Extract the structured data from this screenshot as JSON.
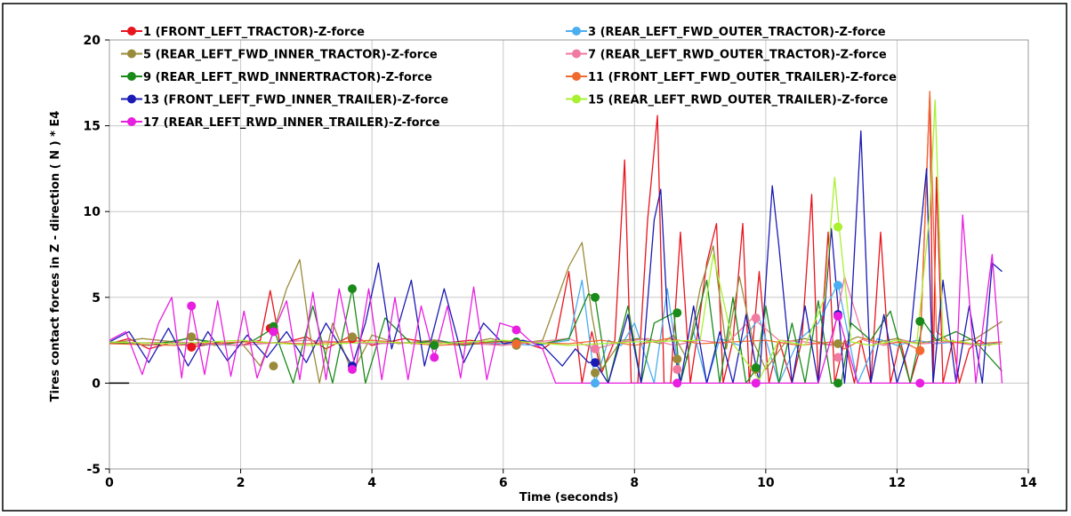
{
  "chart_data": {
    "type": "line",
    "title": "",
    "xlabel": "Time (seconds)",
    "ylabel": "Tires contact forces in Z - direction ( N ) * E4",
    "xlim": [
      0,
      14
    ],
    "ylim": [
      -5,
      20
    ],
    "x_ticks": [
      "0",
      "2",
      "4",
      "6",
      "8",
      "10",
      "12",
      "14"
    ],
    "y_ticks": [
      "-5",
      "0",
      "5",
      "10",
      "15",
      "20"
    ],
    "grid": true,
    "legend_placement": "top-inside",
    "series": [
      {
        "name": "1 (FRONT_LEFT_TRACTOR)-Z-force",
        "color": "#e8141e",
        "x": [
          0,
          0.3,
          0.6,
          1.0,
          1.25,
          1.6,
          2.0,
          2.3,
          2.45,
          2.6,
          3.0,
          3.3,
          3.7,
          4.0,
          4.5,
          5.0,
          5.5,
          6.0,
          6.2,
          6.6,
          6.8,
          7.0,
          7.2,
          7.35,
          7.5,
          7.7,
          7.85,
          7.95,
          8.05,
          8.2,
          8.35,
          8.45,
          8.55,
          8.7,
          8.85,
          8.95,
          9.1,
          9.25,
          9.35,
          9.5,
          9.65,
          9.75,
          9.9,
          10.05,
          10.2,
          10.4,
          10.55,
          10.7,
          10.8,
          10.95,
          11.05,
          11.2,
          11.35,
          11.45,
          11.6,
          11.75,
          11.9,
          12.05,
          12.2,
          12.35,
          12.5,
          12.55,
          12.6,
          12.7,
          12.85,
          12.95,
          13.1,
          13.25,
          13.4,
          13.55
        ],
        "y": [
          2.3,
          2.6,
          2.0,
          2.4,
          2.1,
          2.3,
          2.2,
          2.5,
          5.4,
          2.3,
          2.7,
          2.0,
          2.8,
          2.2,
          2.6,
          2.3,
          2.5,
          2.2,
          2.5,
          2.0,
          2.5,
          6.5,
          0,
          3.0,
          0.6,
          2.5,
          13.0,
          0,
          0,
          9.5,
          15.6,
          0,
          0,
          8.8,
          0,
          2.6,
          7.0,
          9.3,
          0,
          2.5,
          9.3,
          0,
          6.5,
          0,
          2.5,
          0,
          2.5,
          11.0,
          0,
          8.8,
          0,
          2.5,
          0,
          2.5,
          0,
          8.8,
          0,
          2.5,
          0,
          2.0,
          17.0,
          0,
          12.0,
          0,
          2.5,
          0,
          2.0,
          2.5,
          2.2,
          2.4
        ]
      },
      {
        "name": "3 (REAR_LEFT_FWD_OUTER_TRACTOR)-Z-force",
        "color": "#4aaef0",
        "x": [
          0,
          1.0,
          2.0,
          3.0,
          4.0,
          5.0,
          6.0,
          6.5,
          7.0,
          7.2,
          7.4,
          7.6,
          7.8,
          8.0,
          8.3,
          8.5,
          8.7,
          8.9,
          9.1,
          9.3,
          9.6,
          9.9,
          10.2,
          10.5,
          10.8,
          11.1,
          11.4,
          11.7,
          12.0,
          12.3,
          12.6,
          12.9,
          13.2,
          13.6
        ],
        "y": [
          2.4,
          2.3,
          2.2,
          2.5,
          2.3,
          2.4,
          2.3,
          2.2,
          2.5,
          6.0,
          0,
          2.5,
          2.2,
          3.5,
          0,
          5.5,
          0,
          3.0,
          0,
          2.6,
          2.2,
          3.8,
          0,
          2.5,
          3.5,
          5.8,
          0,
          2.6,
          2.2,
          2.5,
          2.3,
          2.4,
          2.2,
          2.4
        ]
      },
      {
        "name": "5 (REAR_LEFT_FWD_INNER_TRACTOR)-Z-force",
        "color": "#9a8b3a",
        "x": [
          0,
          0.5,
          1.0,
          1.25,
          1.6,
          2.0,
          2.3,
          2.5,
          2.7,
          2.9,
          3.05,
          3.2,
          3.4,
          3.7,
          4.0,
          4.4,
          4.9,
          5.3,
          5.8,
          6.2,
          6.6,
          7.0,
          7.2,
          7.35,
          7.5,
          7.8,
          8.1,
          8.4,
          8.6,
          8.8,
          9.0,
          9.2,
          9.4,
          9.6,
          9.8,
          10.0,
          10.3,
          10.6,
          10.9,
          11.1,
          11.4,
          11.7,
          12.0,
          12.3,
          12.6,
          12.9,
          13.2,
          13.6
        ],
        "y": [
          2.3,
          2.6,
          2.4,
          2.7,
          2.2,
          2.4,
          1.0,
          3.0,
          5.5,
          7.2,
          3.0,
          0,
          3.5,
          0.6,
          2.8,
          2.3,
          2.5,
          2.2,
          2.6,
          2.3,
          2.5,
          6.8,
          8.2,
          4.0,
          0.8,
          2.5,
          2.6,
          2.3,
          2.8,
          1.4,
          5.5,
          8.0,
          2.0,
          6.2,
          2.5,
          0.8,
          2.4,
          2.6,
          2.3,
          2.2,
          2.7,
          2.4,
          2.6,
          2.3,
          2.5,
          2.4,
          2.6,
          3.6
        ]
      },
      {
        "name": "7 (REAR_LEFT_RWD_OUTER_TRACTOR)-Z-force",
        "color": "#f07aa0",
        "x": [
          0,
          1.0,
          2.0,
          3.0,
          4.0,
          5.0,
          6.0,
          7.0,
          7.4,
          7.8,
          8.2,
          8.6,
          9.0,
          9.4,
          9.8,
          10.2,
          10.6,
          11.0,
          11.2,
          11.5,
          11.8,
          12.1,
          12.4,
          12.8,
          13.2,
          13.6
        ],
        "y": [
          2.3,
          2.4,
          2.2,
          2.5,
          2.3,
          2.4,
          2.2,
          2.6,
          2.0,
          2.4,
          2.6,
          2.2,
          2.5,
          2.3,
          3.8,
          2.5,
          2.4,
          2.2,
          6.2,
          2.5,
          2.2,
          2.5,
          2.3,
          2.4,
          2.2,
          2.3
        ]
      },
      {
        "name": "9 (REAR_LEFT_RWD_INNERTRACTOR)-Z-force",
        "color": "#1a8a1a",
        "x": [
          0,
          0.6,
          1.2,
          1.8,
          2.2,
          2.5,
          2.8,
          3.1,
          3.4,
          3.7,
          3.9,
          4.2,
          4.6,
          5.0,
          5.4,
          5.8,
          6.2,
          6.6,
          7.0,
          7.3,
          7.4,
          7.6,
          7.9,
          8.1,
          8.3,
          8.6,
          8.7,
          8.9,
          9.1,
          9.3,
          9.5,
          9.7,
          9.85,
          10.0,
          10.2,
          10.4,
          10.6,
          10.8,
          11.0,
          11.15,
          11.3,
          11.6,
          11.9,
          12.2,
          12.4,
          12.6,
          12.9,
          13.2,
          13.6
        ],
        "y": [
          2.4,
          2.2,
          2.6,
          2.3,
          2.5,
          3.2,
          0,
          4.5,
          0,
          5.5,
          0,
          3.8,
          2.3,
          2.5,
          2.2,
          2.4,
          2.5,
          2.3,
          2.6,
          5.2,
          5.0,
          0,
          4.5,
          0,
          3.5,
          4.1,
          0,
          3.0,
          6.0,
          0,
          5.0,
          0,
          0.8,
          4.5,
          0,
          3.5,
          0,
          4.8,
          0,
          0,
          3.5,
          2.5,
          4.2,
          0,
          3.6,
          2.5,
          3.0,
          2.4,
          0.7
        ]
      },
      {
        "name": "11 (FRONT_LEFT_FWD_OUTER_TRAILER)-Z-force",
        "color": "#f06a30",
        "x": [
          0,
          1.0,
          2.0,
          3.0,
          4.0,
          5.0,
          6.0,
          7.0,
          7.5,
          8.0,
          8.5,
          9.0,
          9.5,
          10.0,
          10.5,
          11.0,
          11.2,
          11.5,
          11.8,
          12.1,
          12.35,
          12.5,
          12.6,
          12.8,
          13.2,
          13.6
        ],
        "y": [
          2.3,
          2.2,
          2.4,
          2.3,
          2.5,
          2.2,
          2.4,
          2.3,
          2.5,
          2.2,
          2.6,
          2.3,
          2.4,
          2.5,
          2.2,
          2.4,
          2.0,
          2.6,
          2.3,
          2.4,
          1.9,
          17.0,
          3.0,
          2.4,
          2.3,
          2.4
        ]
      },
      {
        "name": "13 (FRONT_LEFT_FWD_INNER_TRAILER)-Z-force",
        "color": "#1a1ab4",
        "x": [
          0,
          0.3,
          0.6,
          0.9,
          1.2,
          1.5,
          1.8,
          2.1,
          2.4,
          2.7,
          3.0,
          3.3,
          3.7,
          3.9,
          4.1,
          4.3,
          4.6,
          4.8,
          5.1,
          5.4,
          5.7,
          6.0,
          6.3,
          6.6,
          6.9,
          7.1,
          7.3,
          7.4,
          7.6,
          7.9,
          8.1,
          8.3,
          8.4,
          8.5,
          8.7,
          8.9,
          9.1,
          9.3,
          9.5,
          9.7,
          9.9,
          10.1,
          10.2,
          10.4,
          10.6,
          10.8,
          11.0,
          11.2,
          11.3,
          11.45,
          11.6,
          11.8,
          12.0,
          12.2,
          12.45,
          12.55,
          12.7,
          12.9,
          13.1,
          13.3,
          13.45,
          13.6
        ],
        "y": [
          2.4,
          3.0,
          1.2,
          3.2,
          1.0,
          3.0,
          1.3,
          2.8,
          1.5,
          3.0,
          1.2,
          3.5,
          1.0,
          3.5,
          7.0,
          2.0,
          6.0,
          1.0,
          5.5,
          1.2,
          3.5,
          2.3,
          2.5,
          2.2,
          1.0,
          2.0,
          1.2,
          1.2,
          0,
          4.0,
          0,
          9.5,
          11.3,
          4.0,
          0,
          4.5,
          0,
          3.0,
          0,
          4.0,
          0,
          11.5,
          8.0,
          0,
          4.5,
          0,
          9.0,
          0,
          4.0,
          14.7,
          0,
          4.0,
          0,
          2.5,
          12.5,
          0,
          6.0,
          0,
          4.5,
          0,
          7.0,
          6.5
        ]
      },
      {
        "name": "15 (REAR_LEFT_RWD_OUTER_TRAILER)-Z-force",
        "color": "#a8f030",
        "x": [
          0,
          1.0,
          2.0,
          3.0,
          4.0,
          5.0,
          6.0,
          7.0,
          8.0,
          9.0,
          9.2,
          9.5,
          9.9,
          10.2,
          10.6,
          10.9,
          11.05,
          11.12,
          11.3,
          11.6,
          12.0,
          12.3,
          12.5,
          12.58,
          12.7,
          13.0,
          13.3,
          13.6
        ],
        "y": [
          2.4,
          2.3,
          2.5,
          2.2,
          2.4,
          2.3,
          2.5,
          2.2,
          2.4,
          2.5,
          7.5,
          2.3,
          0.2,
          2.5,
          2.2,
          5.0,
          12.0,
          9.0,
          2.4,
          2.2,
          2.5,
          2.3,
          10.0,
          16.5,
          2.5,
          2.4,
          2.2,
          2.3
        ]
      },
      {
        "name": "17 (REAR_LEFT_RWD_INNER_TRAILER)-Z-force",
        "color": "#e81ee0",
        "x": [
          0,
          0.25,
          0.5,
          0.75,
          0.95,
          1.1,
          1.25,
          1.45,
          1.65,
          1.85,
          2.05,
          2.25,
          2.5,
          2.7,
          2.9,
          3.1,
          3.3,
          3.5,
          3.75,
          3.95,
          4.15,
          4.35,
          4.55,
          4.75,
          4.95,
          5.15,
          5.35,
          5.55,
          5.75,
          5.95,
          6.2,
          6.4,
          6.6,
          6.8,
          7.0,
          7.2,
          7.4,
          7.6,
          7.8,
          8.0,
          8.2,
          8.4,
          8.7,
          9.0,
          9.3,
          9.6,
          9.9,
          10.2,
          10.5,
          10.8,
          11.1,
          11.4,
          11.7,
          12.0,
          12.4,
          12.7,
          12.9,
          13.0,
          13.2,
          13.45,
          13.6
        ],
        "y": [
          2.5,
          3.0,
          0.5,
          3.5,
          5.0,
          0.3,
          4.5,
          0.5,
          4.8,
          0.4,
          4.2,
          0.3,
          3.0,
          4.8,
          0.2,
          5.3,
          0.2,
          5.5,
          0.8,
          5.5,
          0.2,
          5.0,
          0.2,
          4.5,
          1.5,
          4.5,
          0.3,
          5.6,
          0.2,
          3.5,
          3.2,
          2.5,
          2.0,
          0,
          0,
          0,
          0,
          0,
          0,
          0,
          0,
          0,
          0,
          0,
          0,
          0,
          0,
          0,
          0,
          0,
          4.0,
          0,
          0,
          0,
          0,
          0,
          0,
          9.8,
          0,
          7.5,
          0
        ]
      }
    ],
    "markers": [
      {
        "series": 0,
        "x": 1.25,
        "y": 2.1
      },
      {
        "series": 0,
        "x": 2.45,
        "y": 3.2
      },
      {
        "series": 0,
        "x": 3.7,
        "y": 2.6
      },
      {
        "series": 0,
        "x": 12.35,
        "y": 1.9
      },
      {
        "series": 1,
        "x": 7.4,
        "y": 0
      },
      {
        "series": 1,
        "x": 9.85,
        "y": 0
      },
      {
        "series": 1,
        "x": 11.1,
        "y": 5.7
      },
      {
        "series": 2,
        "x": 1.25,
        "y": 2.7
      },
      {
        "series": 2,
        "x": 2.5,
        "y": 1.0
      },
      {
        "series": 2,
        "x": 3.7,
        "y": 2.7
      },
      {
        "series": 2,
        "x": 4.95,
        "y": 2.3
      },
      {
        "series": 2,
        "x": 6.2,
        "y": 2.2
      },
      {
        "series": 2,
        "x": 7.4,
        "y": 0.6
      },
      {
        "series": 2,
        "x": 8.65,
        "y": 1.4
      },
      {
        "series": 2,
        "x": 9.85,
        "y": 0.8
      },
      {
        "series": 2,
        "x": 11.1,
        "y": 2.3
      },
      {
        "series": 3,
        "x": 7.4,
        "y": 2.0
      },
      {
        "series": 3,
        "x": 8.65,
        "y": 0.8
      },
      {
        "series": 3,
        "x": 9.85,
        "y": 3.8
      },
      {
        "series": 3,
        "x": 11.1,
        "y": 1.5
      },
      {
        "series": 4,
        "x": 2.5,
        "y": 3.3
      },
      {
        "series": 4,
        "x": 3.7,
        "y": 5.5
      },
      {
        "series": 4,
        "x": 4.95,
        "y": 2.2
      },
      {
        "series": 4,
        "x": 6.2,
        "y": 2.4
      },
      {
        "series": 4,
        "x": 7.4,
        "y": 5.0
      },
      {
        "series": 4,
        "x": 8.65,
        "y": 4.1
      },
      {
        "series": 4,
        "x": 9.85,
        "y": 0.9
      },
      {
        "series": 4,
        "x": 11.1,
        "y": 0
      },
      {
        "series": 4,
        "x": 12.35,
        "y": 3.6
      },
      {
        "series": 5,
        "x": 6.2,
        "y": 2.3
      },
      {
        "series": 5,
        "x": 12.35,
        "y": 1.9
      },
      {
        "series": 6,
        "x": 3.7,
        "y": 1.0
      },
      {
        "series": 6,
        "x": 7.4,
        "y": 1.2
      },
      {
        "series": 6,
        "x": 11.1,
        "y": 4.0
      },
      {
        "series": 7,
        "x": 11.1,
        "y": 9.1
      },
      {
        "series": 8,
        "x": 1.25,
        "y": 4.5
      },
      {
        "series": 8,
        "x": 2.5,
        "y": 3.0
      },
      {
        "series": 8,
        "x": 3.7,
        "y": 0.8
      },
      {
        "series": 8,
        "x": 4.95,
        "y": 1.5
      },
      {
        "series": 8,
        "x": 6.2,
        "y": 3.1
      },
      {
        "series": 8,
        "x": 8.65,
        "y": 0
      },
      {
        "series": 8,
        "x": 9.85,
        "y": 0
      },
      {
        "series": 8,
        "x": 11.1,
        "y": 3.9
      },
      {
        "series": 8,
        "x": 12.35,
        "y": 0
      }
    ]
  }
}
